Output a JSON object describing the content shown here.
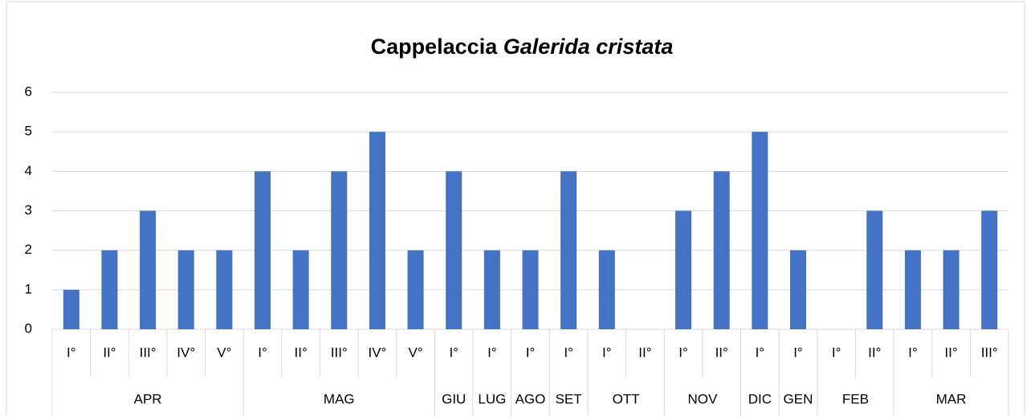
{
  "chart_data": {
    "type": "bar",
    "title": "Cappelaccia",
    "title_italic": "Galerida cristata",
    "groups": [
      {
        "name": "APR",
        "categories": [
          "I°",
          "II°",
          "III°",
          "IV°",
          "V°"
        ],
        "values": [
          1,
          2,
          3,
          2,
          2
        ]
      },
      {
        "name": "MAG",
        "categories": [
          "I°",
          "II°",
          "III°",
          "IV°",
          "V°"
        ],
        "values": [
          4,
          2,
          4,
          5,
          2
        ]
      },
      {
        "name": "GIU",
        "categories": [
          "I°"
        ],
        "values": [
          4
        ]
      },
      {
        "name": "LUG",
        "categories": [
          "I°"
        ],
        "values": [
          2
        ]
      },
      {
        "name": "AGO",
        "categories": [
          "I°"
        ],
        "values": [
          2
        ]
      },
      {
        "name": "SET",
        "categories": [
          "I°"
        ],
        "values": [
          4
        ]
      },
      {
        "name": "OTT",
        "categories": [
          "I°",
          "II°"
        ],
        "values": [
          2,
          0
        ]
      },
      {
        "name": "NOV",
        "categories": [
          "I°",
          "II°"
        ],
        "values": [
          3,
          4
        ]
      },
      {
        "name": "DIC",
        "categories": [
          "I°"
        ],
        "values": [
          5
        ]
      },
      {
        "name": "GEN",
        "categories": [
          "I°"
        ],
        "values": [
          2
        ]
      },
      {
        "name": "FEB",
        "categories": [
          "I°",
          "II°"
        ],
        "values": [
          0,
          3
        ]
      },
      {
        "name": "MAR",
        "categories": [
          "I°",
          "II°",
          "III°"
        ],
        "values": [
          2,
          2,
          3
        ]
      }
    ],
    "color": "#4472c4",
    "ylim": [
      0,
      6
    ],
    "yticks": [
      0,
      1,
      2,
      3,
      4,
      5,
      6
    ],
    "grid": true
  }
}
